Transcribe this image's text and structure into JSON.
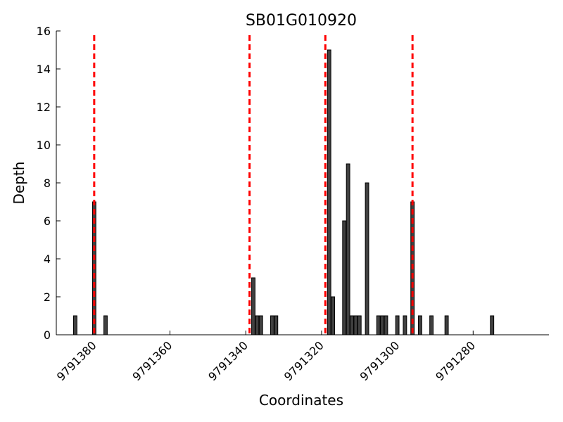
{
  "chart_data": {
    "type": "bar",
    "title": "SB01G010920",
    "xlabel": "Coordinates",
    "ylabel": "Depth",
    "xlim": [
      9791390,
      9791260
    ],
    "ylim": [
      0,
      16
    ],
    "x_ticks": [
      9791380,
      9791360,
      9791340,
      9791320,
      9791300,
      9791280
    ],
    "y_ticks": [
      0,
      2,
      4,
      6,
      8,
      10,
      12,
      14,
      16
    ],
    "grid": false,
    "bar_color": "#404040",
    "bars": [
      {
        "x": 9791385,
        "y": 1
      },
      {
        "x": 9791380,
        "y": 7
      },
      {
        "x": 9791377,
        "y": 1
      },
      {
        "x": 9791338,
        "y": 3
      },
      {
        "x": 9791337,
        "y": 1
      },
      {
        "x": 9791336,
        "y": 1
      },
      {
        "x": 9791333,
        "y": 1
      },
      {
        "x": 9791332,
        "y": 1
      },
      {
        "x": 9791318,
        "y": 15
      },
      {
        "x": 9791317,
        "y": 2
      },
      {
        "x": 9791314,
        "y": 6
      },
      {
        "x": 9791313,
        "y": 9
      },
      {
        "x": 9791312,
        "y": 1
      },
      {
        "x": 9791311,
        "y": 1
      },
      {
        "x": 9791310,
        "y": 1
      },
      {
        "x": 9791308,
        "y": 8
      },
      {
        "x": 9791305,
        "y": 1
      },
      {
        "x": 9791304,
        "y": 1
      },
      {
        "x": 9791303,
        "y": 1
      },
      {
        "x": 9791300,
        "y": 1
      },
      {
        "x": 9791298,
        "y": 1
      },
      {
        "x": 9791296,
        "y": 7
      },
      {
        "x": 9791294,
        "y": 1
      },
      {
        "x": 9791291,
        "y": 1
      },
      {
        "x": 9791287,
        "y": 1
      },
      {
        "x": 9791275,
        "y": 1
      }
    ],
    "vertical_lines": [
      {
        "x": 9791380,
        "color": "#ff0000"
      },
      {
        "x": 9791339,
        "color": "#ff0000"
      },
      {
        "x": 9791319,
        "color": "#ff0000"
      },
      {
        "x": 9791296,
        "color": "#ff0000"
      }
    ]
  }
}
